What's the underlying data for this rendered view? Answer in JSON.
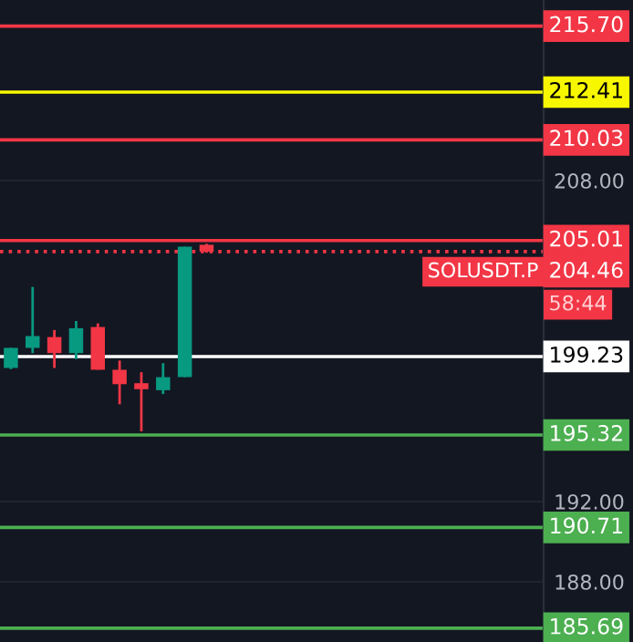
{
  "chart_data": {
    "type": "candlestick",
    "categories": [
      null,
      null,
      null,
      null,
      null,
      null,
      null,
      null,
      null,
      null,
      null,
      null,
      null,
      null,
      null,
      null,
      null,
      null,
      null,
      null,
      null,
      null,
      null,
      null,
      null
    ],
    "ohlc": [
      [
        198.66,
        199.66,
        198.6,
        199.66
      ],
      [
        199.66,
        202.7,
        199.4,
        200.25
      ],
      [
        200.2,
        200.55,
        198.66,
        199.4
      ],
      [
        199.4,
        201.0,
        199.1,
        200.64
      ],
      [
        200.7,
        200.88,
        198.57,
        198.57
      ],
      [
        198.57,
        199.03,
        196.85,
        197.85
      ],
      [
        197.9,
        198.45,
        195.5,
        197.6
      ],
      [
        197.55,
        198.9,
        197.36,
        198.2
      ],
      [
        198.2,
        204.7,
        198.2,
        204.7
      ],
      [
        204.8,
        204.85,
        204.4,
        204.46
      ],
      null,
      null,
      null,
      null,
      null,
      null,
      null,
      null,
      null,
      null,
      null,
      null,
      null,
      null,
      null
    ],
    "colors": [
      "#089981",
      "#089981",
      "#f23645",
      "#089981",
      "#f23645",
      "#f23645",
      "#f23645",
      "#089981",
      "#089981",
      "#f23645",
      null,
      null,
      null,
      null,
      null,
      null,
      null,
      null,
      null,
      null,
      null,
      null,
      null,
      null,
      null
    ],
    "ylim": [
      185.0,
      217.0
    ],
    "yticks": [
      {
        "value": 188,
        "label": "188.00"
      },
      {
        "value": 192,
        "label": "192.00"
      },
      {
        "value": 208,
        "label": "208.00"
      }
    ],
    "tick_labels": "y",
    "grid": true,
    "ref_lines": [
      {
        "axis": "y",
        "value": 215.7,
        "label": "215.70",
        "color": "#f23645",
        "line_style": "solid"
      },
      {
        "axis": "y",
        "value": 212.41,
        "label": "212.41",
        "color": "#f7f700",
        "line_style": "solid"
      },
      {
        "axis": "y",
        "value": 210.03,
        "label": "210.03",
        "color": "#f23645",
        "line_style": "solid"
      },
      {
        "axis": "y",
        "value": 205.01,
        "label": "205.01",
        "color": "#f23645",
        "line_style": "solid"
      },
      {
        "axis": "y",
        "value": 204.46,
        "label": "204.46",
        "color": "#f23645",
        "line_style": "dotted"
      },
      {
        "axis": "y",
        "value": 199.23,
        "label": "199.23",
        "color": "#ffffff",
        "line_style": "solid"
      },
      {
        "axis": "y",
        "value": 195.32,
        "label": "195.32",
        "color": "#4caf50",
        "line_style": "solid"
      },
      {
        "axis": "y",
        "value": 190.71,
        "label": "190.71",
        "color": "#4caf50",
        "line_style": "solid"
      },
      {
        "axis": "y",
        "value": 185.69,
        "label": "185.69",
        "color": "#4caf50",
        "line_style": "solid"
      }
    ],
    "annotations": [
      {
        "text": "SOLUSDT.P",
        "y": 204.46
      },
      "58:44"
    ]
  }
}
